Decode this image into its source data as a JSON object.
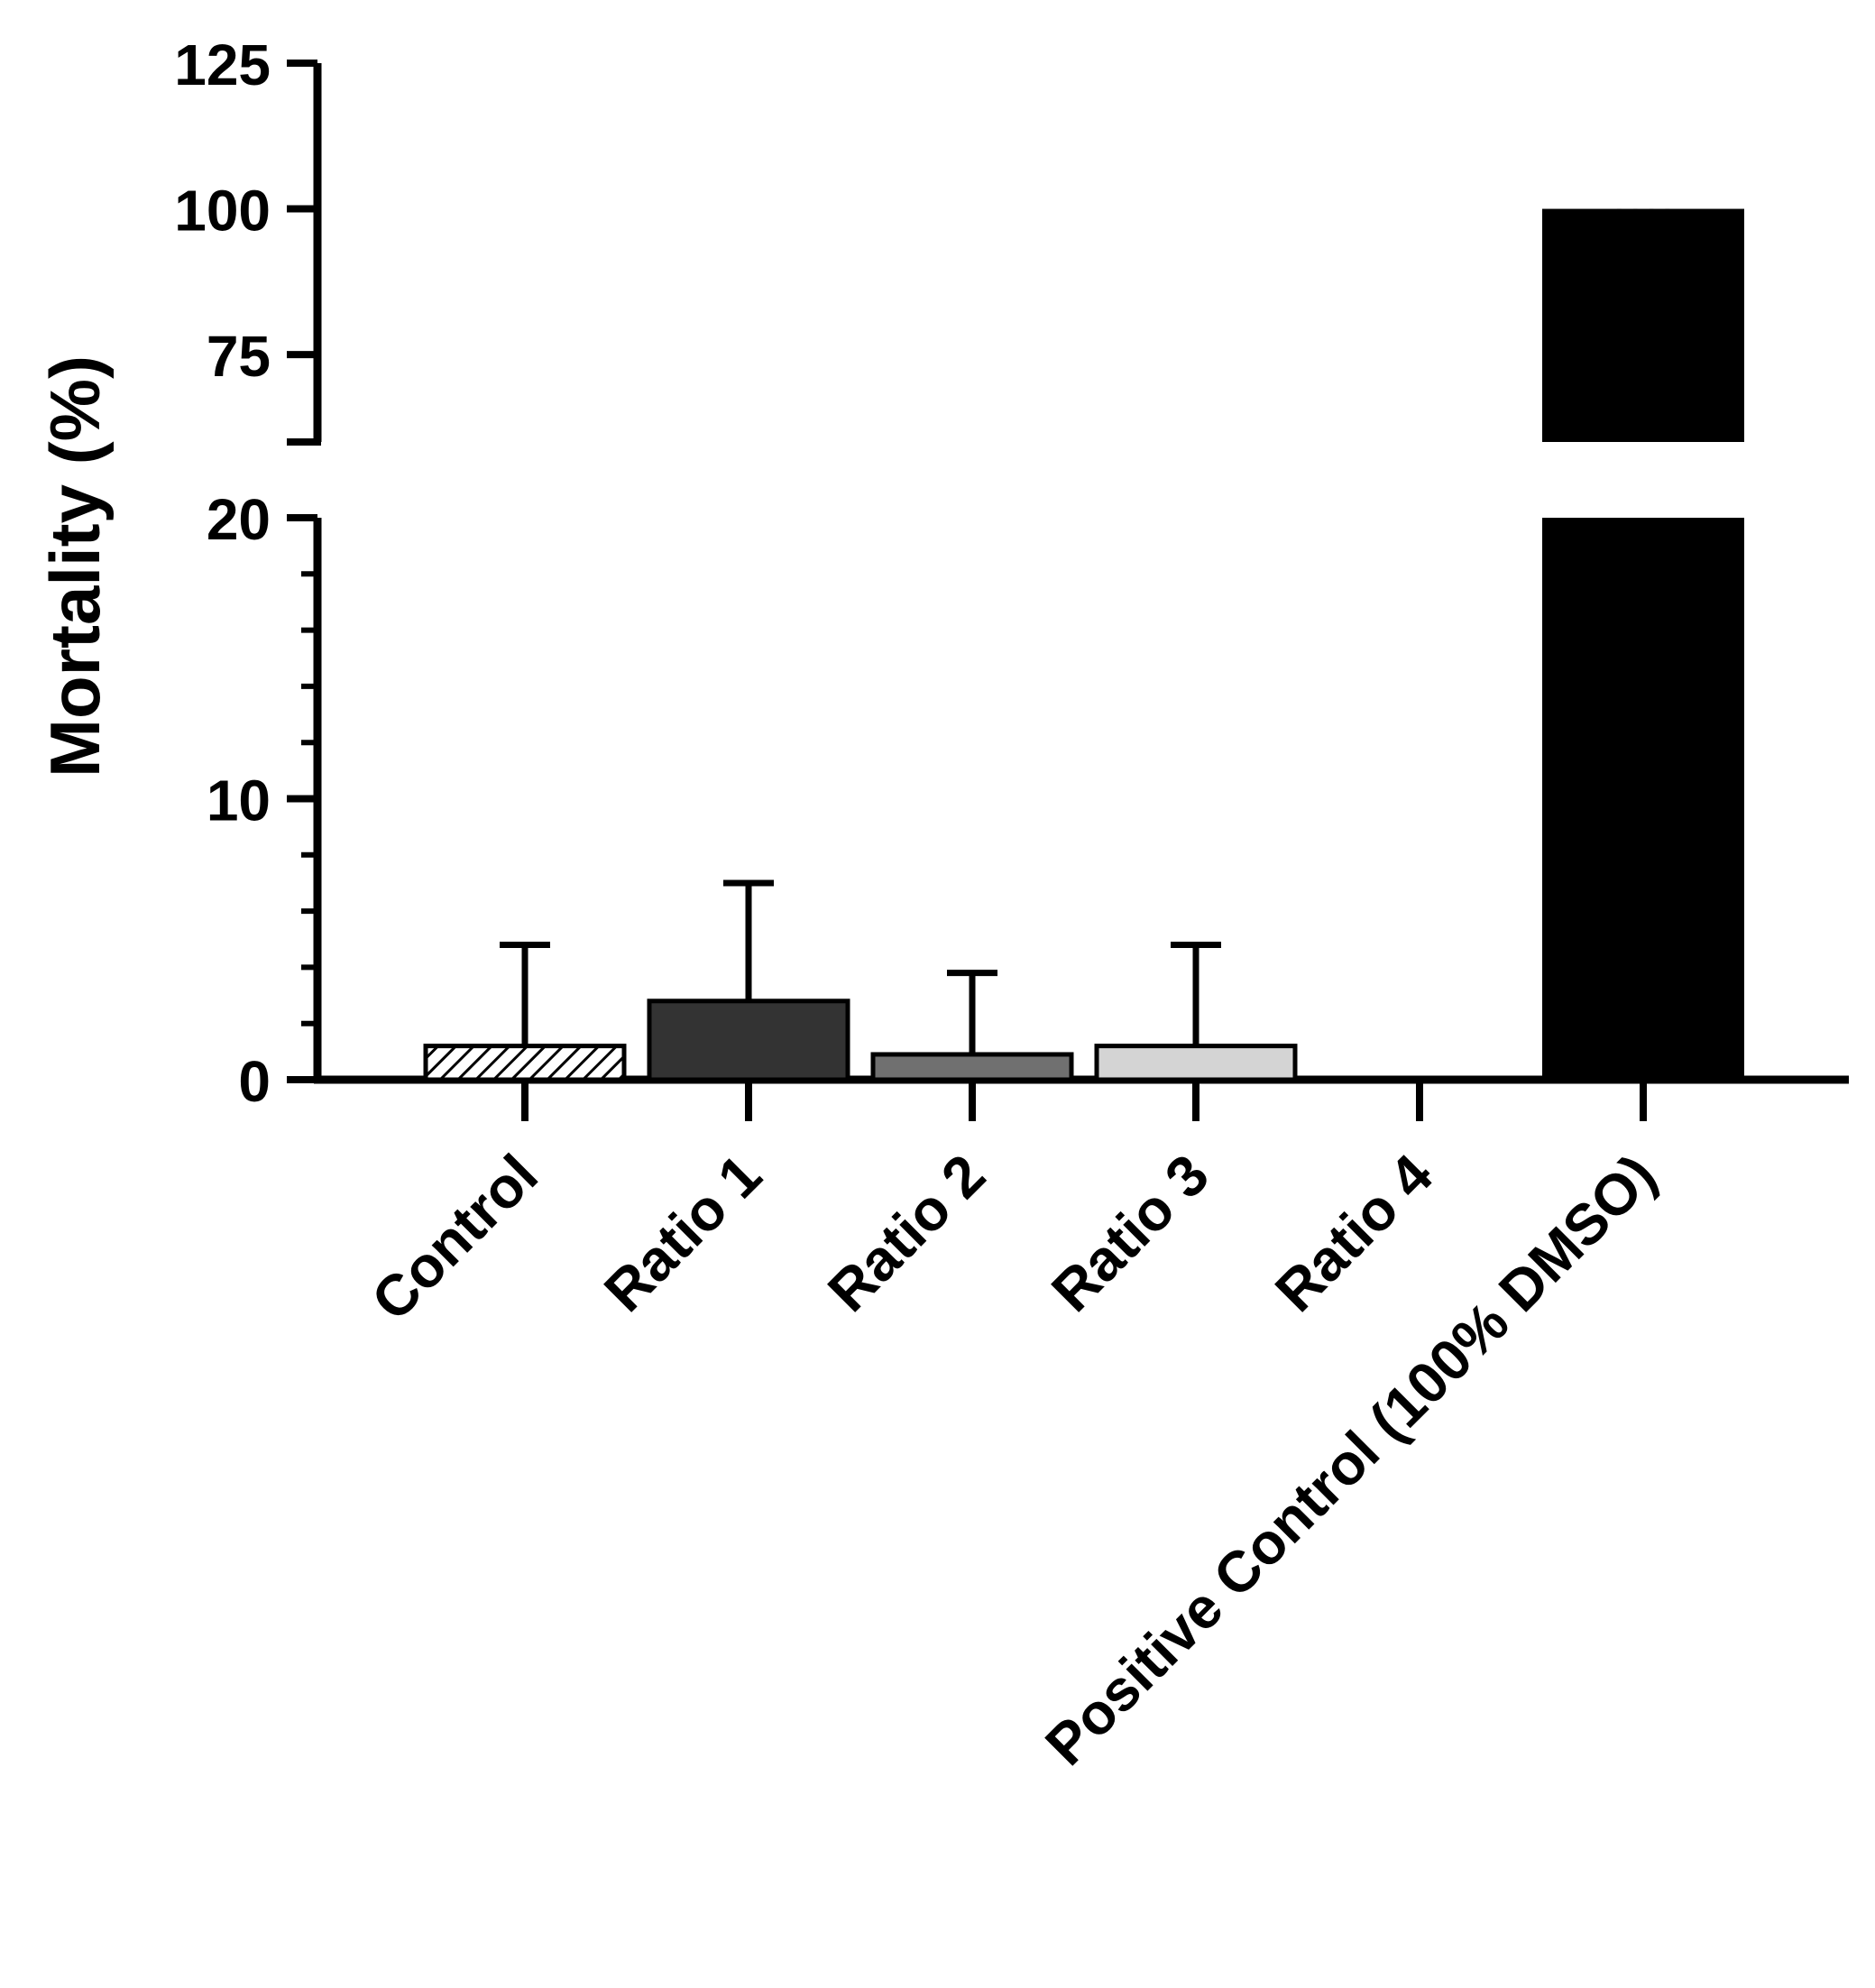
{
  "chart_data": {
    "type": "bar",
    "ylabel": "Mortality (%)",
    "categories": [
      "Control",
      "Ratio 1",
      "Ratio 2",
      "Ratio 3",
      "Ratio 4",
      "Positive Control (100% DMSO)"
    ],
    "values": [
      1.2,
      2.8,
      0.9,
      1.2,
      0,
      100
    ],
    "error_upper": [
      4.8,
      7.0,
      3.8,
      4.8,
      0,
      0
    ],
    "fills": [
      "hatch",
      "#333333",
      "#707070",
      "#d4d4d4",
      "#000000",
      "#000000"
    ],
    "axis_break": true,
    "lower_segment": {
      "ylim": [
        0,
        20
      ],
      "ticks": [
        "0",
        "10",
        "20"
      ]
    },
    "upper_segment": {
      "ylim": [
        60,
        125
      ],
      "ticks": [
        "75",
        "100",
        "125"
      ]
    },
    "annotations": [
      {
        "category": "Positive Control (100% DMSO)",
        "text": "****"
      }
    ],
    "grid": false,
    "legend": "none"
  }
}
